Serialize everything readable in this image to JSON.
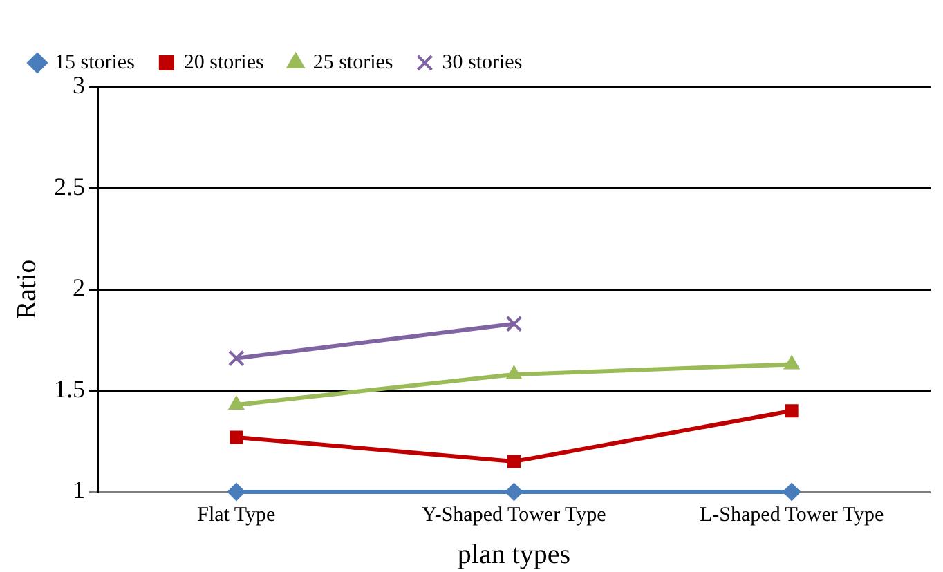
{
  "chart_data": {
    "type": "line",
    "xlabel": "plan types",
    "ylabel": "Ratio",
    "categories": [
      "Flat Type",
      "Y-Shaped Tower Type",
      "L-Shaped Tower Type"
    ],
    "series": [
      {
        "name": "15 stories",
        "color": "#4a7ebb",
        "values": [
          1,
          1,
          1
        ],
        "marker": "diamond"
      },
      {
        "name": "20 stories",
        "color": "#c00000",
        "values": [
          1.27,
          1.15,
          1.4
        ],
        "marker": "square"
      },
      {
        "name": "25 stories",
        "color": "#9bbb59",
        "values": [
          1.43,
          1.58,
          1.63
        ],
        "marker": "triangle"
      },
      {
        "name": "30 stories",
        "color": "#8064a2",
        "values": [
          1.66,
          1.83,
          null
        ],
        "marker": "cross"
      }
    ],
    "ylim": [
      1,
      3
    ],
    "yticks": [
      1,
      1.5,
      2,
      2.5,
      3
    ],
    "grid": "y",
    "legend": "top left",
    "line_style": "solid"
  }
}
